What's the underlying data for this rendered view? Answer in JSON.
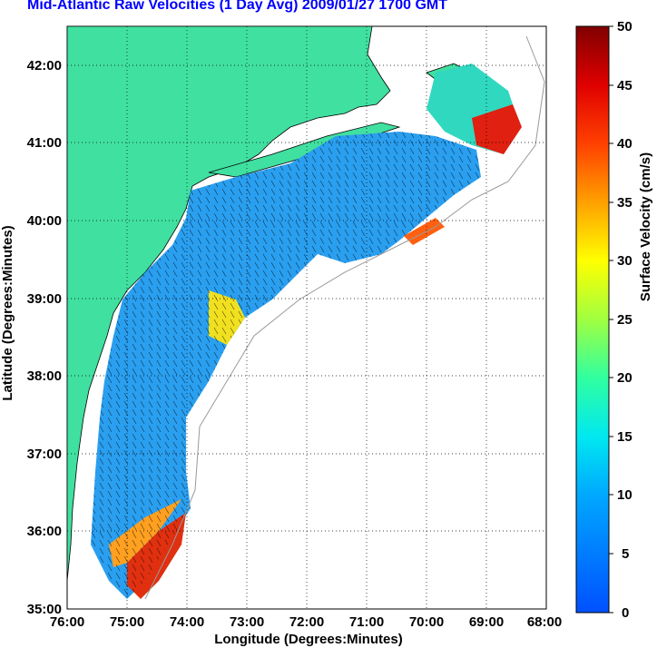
{
  "title": "Mid-Atlantic Raw Velocities (1 Day Avg) 2009/01/27 1700 GMT",
  "map": {
    "xlabel": "Longitude (Degrees:Minutes)",
    "ylabel": "Latitude (Degrees:Minutes)",
    "lon_ticks": [
      "76:00",
      "75:00",
      "74:00",
      "73:00",
      "72:00",
      "71:00",
      "70:00",
      "69:00",
      "68:00"
    ],
    "lat_ticks": [
      "42:00",
      "41:00",
      "40:00",
      "39:00",
      "38:00",
      "37:00",
      "36:00",
      "35:00"
    ],
    "lon_range": [
      -76,
      -68
    ],
    "lat_range": [
      35,
      42.5
    ],
    "land_color": "#40e0a0",
    "grid": "dotted"
  },
  "colorbar": {
    "label": "Surface Velocity (cm/s)",
    "ticks": [
      "50",
      "45",
      "40",
      "35",
      "30",
      "25",
      "20",
      "15",
      "10",
      "5",
      "0"
    ],
    "range": [
      0,
      50
    ],
    "colormap": "jet"
  },
  "colors": {
    "title": "#0000ff",
    "land": "#40e0a0",
    "contour": "#999999"
  }
}
